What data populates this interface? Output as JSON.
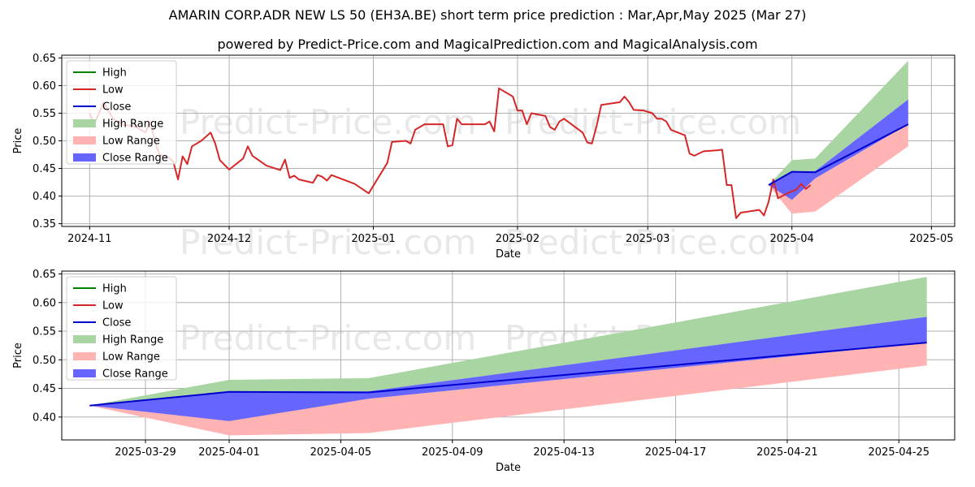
{
  "title": "AMARIN CORP.ADR NEW LS 50 (EH3A.BE) short term price prediction : Mar,Apr,May 2025 (Mar 27)",
  "subtitle": "powered by Predict-Price.com and MagicalPrediction.com and MagicalAnalysis.com",
  "watermark": "Predict-Price.com",
  "colors": {
    "high": "#008000",
    "low": "#d62728",
    "close": "#0000cc",
    "high_range": "#a8d5a2",
    "low_range": "#ffb3b3",
    "close_range": "#6666ff"
  },
  "chart_data": [
    {
      "type": "line",
      "xlabel": "Date",
      "ylabel": "Price",
      "grid": true,
      "legend_position": "upper-left",
      "legend": [
        "High",
        "Low",
        "Close",
        "High Range",
        "Low Range",
        "Close Range"
      ],
      "xlim": [
        "2024-10-26",
        "2025-05-06"
      ],
      "ylim": [
        0.345,
        0.655
      ],
      "x_ticks": [
        "2024-11",
        "2024-12",
        "2025-01",
        "2025-02",
        "2025-03",
        "2025-04",
        "2025-05"
      ],
      "x_tick_dates": [
        "2024-11-01",
        "2024-12-01",
        "2025-01-01",
        "2025-02-01",
        "2025-03-01",
        "2025-04-01",
        "2025-05-01"
      ],
      "y_ticks": [
        "0.35",
        "0.40",
        "0.45",
        "0.50",
        "0.55",
        "0.60",
        "0.65"
      ],
      "y_tick_values": [
        0.35,
        0.4,
        0.45,
        0.5,
        0.55,
        0.6,
        0.65
      ],
      "history": {
        "name": "Low",
        "points": [
          [
            "2024-11-01",
            0.55
          ],
          [
            "2024-11-02",
            0.53
          ],
          [
            "2024-11-04",
            0.57
          ],
          [
            "2024-11-06",
            0.54
          ],
          [
            "2024-11-08",
            0.53
          ],
          [
            "2024-11-11",
            0.525
          ],
          [
            "2024-11-13",
            0.515
          ],
          [
            "2024-11-14",
            0.535
          ],
          [
            "2024-11-15",
            0.5
          ],
          [
            "2024-11-16",
            0.475
          ],
          [
            "2024-11-18",
            0.47
          ],
          [
            "2024-11-19",
            0.462
          ],
          [
            "2024-11-20",
            0.43
          ],
          [
            "2024-11-21",
            0.472
          ],
          [
            "2024-11-22",
            0.458
          ],
          [
            "2024-11-23",
            0.49
          ],
          [
            "2024-11-25",
            0.5
          ],
          [
            "2024-11-27",
            0.515
          ],
          [
            "2024-11-28",
            0.495
          ],
          [
            "2024-11-29",
            0.465
          ],
          [
            "2024-12-01",
            0.448
          ],
          [
            "2024-12-04",
            0.468
          ],
          [
            "2024-12-05",
            0.49
          ],
          [
            "2024-12-06",
            0.473
          ],
          [
            "2024-12-09",
            0.455
          ],
          [
            "2024-12-12",
            0.447
          ],
          [
            "2024-12-13",
            0.466
          ],
          [
            "2024-12-14",
            0.433
          ],
          [
            "2024-12-15",
            0.437
          ],
          [
            "2024-12-16",
            0.43
          ],
          [
            "2024-12-19",
            0.424
          ],
          [
            "2024-12-20",
            0.438
          ],
          [
            "2024-12-21",
            0.435
          ],
          [
            "2024-12-22",
            0.428
          ],
          [
            "2024-12-23",
            0.438
          ],
          [
            "2024-12-28",
            0.422
          ],
          [
            "2024-12-31",
            0.405
          ],
          [
            "2025-01-04",
            0.46
          ],
          [
            "2025-01-05",
            0.498
          ],
          [
            "2025-01-08",
            0.5
          ],
          [
            "2025-01-09",
            0.495
          ],
          [
            "2025-01-10",
            0.52
          ],
          [
            "2025-01-12",
            0.53
          ],
          [
            "2025-01-16",
            0.53
          ],
          [
            "2025-01-17",
            0.49
          ],
          [
            "2025-01-18",
            0.492
          ],
          [
            "2025-01-19",
            0.54
          ],
          [
            "2025-01-20",
            0.53
          ],
          [
            "2025-01-25",
            0.53
          ],
          [
            "2025-01-26",
            0.535
          ],
          [
            "2025-01-27",
            0.517
          ],
          [
            "2025-01-28",
            0.595
          ],
          [
            "2025-01-31",
            0.58
          ],
          [
            "2025-02-01",
            0.555
          ],
          [
            "2025-02-02",
            0.555
          ],
          [
            "2025-02-03",
            0.53
          ],
          [
            "2025-02-04",
            0.55
          ],
          [
            "2025-02-07",
            0.545
          ],
          [
            "2025-02-08",
            0.525
          ],
          [
            "2025-02-09",
            0.52
          ],
          [
            "2025-02-10",
            0.535
          ],
          [
            "2025-02-11",
            0.54
          ],
          [
            "2025-02-15",
            0.515
          ],
          [
            "2025-02-16",
            0.497
          ],
          [
            "2025-02-17",
            0.495
          ],
          [
            "2025-02-18",
            0.527
          ],
          [
            "2025-02-19",
            0.565
          ],
          [
            "2025-02-23",
            0.57
          ],
          [
            "2025-02-24",
            0.58
          ],
          [
            "2025-02-25",
            0.57
          ],
          [
            "2025-02-26",
            0.556
          ],
          [
            "2025-02-28",
            0.555
          ],
          [
            "2025-03-02",
            0.55
          ],
          [
            "2025-03-03",
            0.54
          ],
          [
            "2025-03-04",
            0.54
          ],
          [
            "2025-03-05",
            0.535
          ],
          [
            "2025-03-06",
            0.52
          ],
          [
            "2025-03-09",
            0.51
          ],
          [
            "2025-03-10",
            0.477
          ],
          [
            "2025-03-11",
            0.473
          ],
          [
            "2025-03-13",
            0.481
          ],
          [
            "2025-03-16",
            0.483
          ],
          [
            "2025-03-17",
            0.484
          ],
          [
            "2025-03-18",
            0.42
          ],
          [
            "2025-03-19",
            0.42
          ],
          [
            "2025-03-20",
            0.36
          ],
          [
            "2025-03-21",
            0.37
          ],
          [
            "2025-03-25",
            0.375
          ],
          [
            "2025-03-26",
            0.365
          ],
          [
            "2025-03-27",
            0.39
          ],
          [
            "2025-03-28",
            0.43
          ],
          [
            "2025-03-29",
            0.396
          ],
          [
            "2025-03-31",
            0.405
          ],
          [
            "2025-04-02",
            0.412
          ],
          [
            "2025-04-03",
            0.422
          ],
          [
            "2025-04-04",
            0.413
          ],
          [
            "2025-04-05",
            0.42
          ]
        ]
      }
    },
    {
      "type": "line",
      "xlabel": "Date",
      "ylabel": "Price",
      "grid": true,
      "legend_position": "upper-left",
      "legend": [
        "High",
        "Low",
        "Close",
        "High Range",
        "Low Range",
        "Close Range"
      ],
      "xlim": [
        "2025-03-26",
        "2025-04-27"
      ],
      "ylim": [
        0.36,
        0.655
      ],
      "x_ticks": [
        "2025-03-29",
        "2025-04-01",
        "2025-04-05",
        "2025-04-09",
        "2025-04-13",
        "2025-04-17",
        "2025-04-21",
        "2025-04-25"
      ],
      "y_ticks": [
        "0.40",
        "0.45",
        "0.50",
        "0.55",
        "0.60",
        "0.65"
      ],
      "y_tick_values": [
        0.4,
        0.45,
        0.5,
        0.55,
        0.6,
        0.65
      ],
      "forecast_dates": [
        "2025-03-27",
        "2025-04-01",
        "2025-04-06",
        "2025-04-26"
      ],
      "series": [
        {
          "name": "High Range",
          "upper": [
            0.42,
            0.465,
            0.468,
            0.645
          ],
          "lower": [
            0.42,
            0.445,
            0.445,
            0.575
          ]
        },
        {
          "name": "Low Range",
          "upper": [
            0.42,
            0.395,
            0.432,
            0.53
          ],
          "lower": [
            0.42,
            0.368,
            0.372,
            0.49
          ]
        },
        {
          "name": "Close Range",
          "upper": [
            0.42,
            0.445,
            0.445,
            0.575
          ],
          "lower": [
            0.42,
            0.393,
            0.432,
            0.53
          ]
        },
        {
          "name": "Close",
          "values": [
            0.42,
            0.444,
            0.443,
            0.53
          ]
        }
      ]
    }
  ]
}
